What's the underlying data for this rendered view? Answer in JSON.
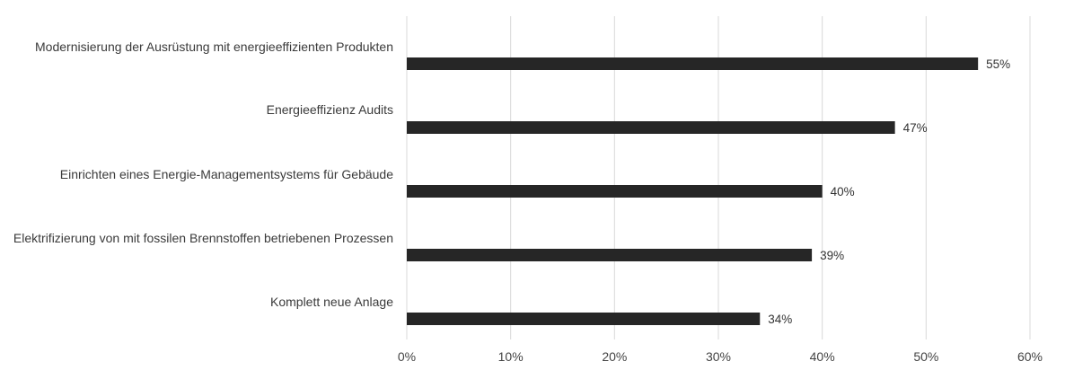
{
  "chart_data": {
    "type": "bar",
    "orientation": "horizontal",
    "categories": [
      "Modernisierung der Ausrüstung mit energieeffizienten Produkten",
      "Energieeffizienz Audits",
      "Einrichten eines Energie-Managementsystems für Gebäude",
      "Elektrifizierung von mit fossilen Brennstoffen betriebenen Prozessen",
      "Komplett neue Anlage"
    ],
    "values": [
      55,
      47,
      40,
      39,
      34
    ],
    "value_labels": [
      "55%",
      "47%",
      "40%",
      "39%",
      "34%"
    ],
    "x_ticks": [
      "0%",
      "10%",
      "20%",
      "30%",
      "40%",
      "50%",
      "60%"
    ],
    "xlim": [
      0,
      60
    ],
    "grid": true,
    "bar_color": "#262626",
    "grid_color": "#d9d9d9",
    "title": "",
    "xlabel": "",
    "ylabel": ""
  }
}
